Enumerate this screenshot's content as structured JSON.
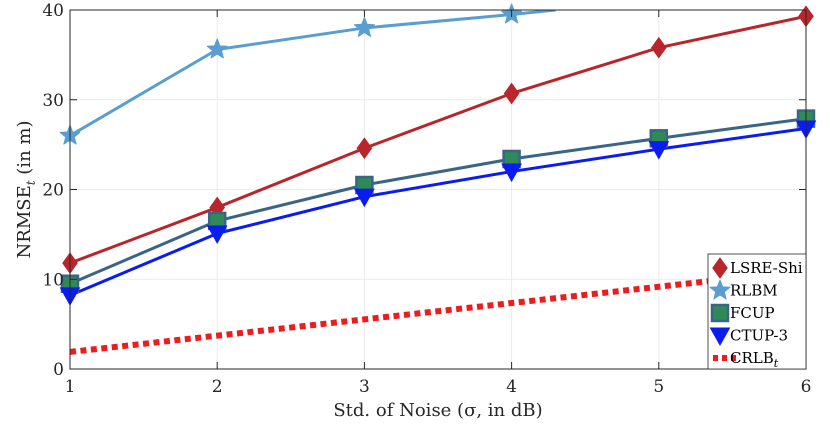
{
  "chart_data": {
    "type": "line",
    "title": "",
    "xlabel": "Std. of Noise (σ, in dB)",
    "ylabel": "NRMSE",
    "ylabel_subscript": "t",
    "ylabel_suffix": " (in m)",
    "xlim": [
      1,
      6
    ],
    "ylim": [
      0,
      40
    ],
    "grid": true,
    "legend_position": "bottom-right",
    "x_ticks": [
      1,
      2,
      3,
      4,
      5,
      6
    ],
    "y_ticks": [
      0,
      10,
      20,
      30,
      40
    ],
    "series": [
      {
        "name": "LSRE-Shi",
        "label_sub": "",
        "color": "#b8262b",
        "marker": "diamond",
        "dash": "solid",
        "x": [
          1,
          2,
          3,
          4,
          5,
          6
        ],
        "values": [
          11.8,
          18.0,
          24.6,
          30.7,
          35.8,
          39.3
        ]
      },
      {
        "name": "RLBM",
        "label_sub": "",
        "color": "#5a9ed1",
        "marker": "star",
        "dash": "solid",
        "x": [
          1,
          2,
          3,
          4,
          4.3
        ],
        "values": [
          26.0,
          35.6,
          38.0,
          39.5,
          40.0
        ]
      },
      {
        "name": "FCUP",
        "label_sub": "",
        "color": "#3a6587",
        "marker": "square",
        "marker_fill": "#2f8a55",
        "dash": "solid",
        "x": [
          1,
          2,
          3,
          4,
          5,
          6
        ],
        "values": [
          9.5,
          16.5,
          20.5,
          23.4,
          25.7,
          27.9
        ]
      },
      {
        "name": "CTUP-3",
        "label_sub": "",
        "color": "#0a1cf0",
        "marker": "triangle-down",
        "dash": "solid",
        "x": [
          1,
          2,
          3,
          4,
          5,
          6
        ],
        "values": [
          8.2,
          15.1,
          19.2,
          22.0,
          24.5,
          26.8
        ]
      },
      {
        "name": "CRLB",
        "label_sub": "t",
        "color": "#ee1c1c",
        "marker": "none",
        "dash": "dotted",
        "x": [
          1,
          5.35
        ],
        "values": [
          1.9,
          9.8
        ]
      }
    ]
  }
}
